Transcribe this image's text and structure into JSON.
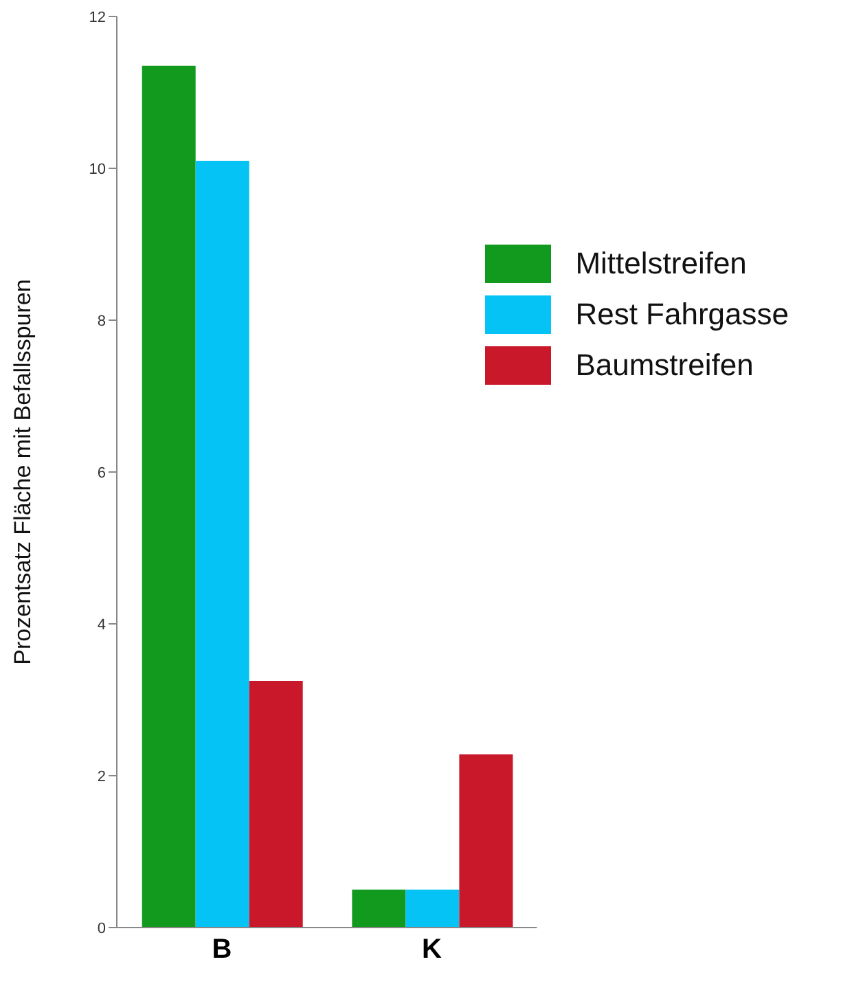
{
  "chart_data": {
    "type": "bar",
    "ylabel": "Prozentsatz Fläche mit Befallsspuren",
    "categories": [
      "B",
      "K"
    ],
    "series": [
      {
        "name": "Mittelstreifen",
        "color": "#129a1f",
        "values": [
          11.35,
          0.5
        ]
      },
      {
        "name": "Rest Fahrgasse",
        "color": "#05c3f4",
        "values": [
          10.1,
          0.5
        ]
      },
      {
        "name": "Baumstreifen",
        "color": "#c8182a",
        "values": [
          3.25,
          2.28
        ]
      }
    ],
    "ylim": [
      0,
      12
    ],
    "yticks": [
      0,
      2,
      4,
      6,
      8,
      10,
      12
    ],
    "grid": false,
    "legend": "top right"
  }
}
